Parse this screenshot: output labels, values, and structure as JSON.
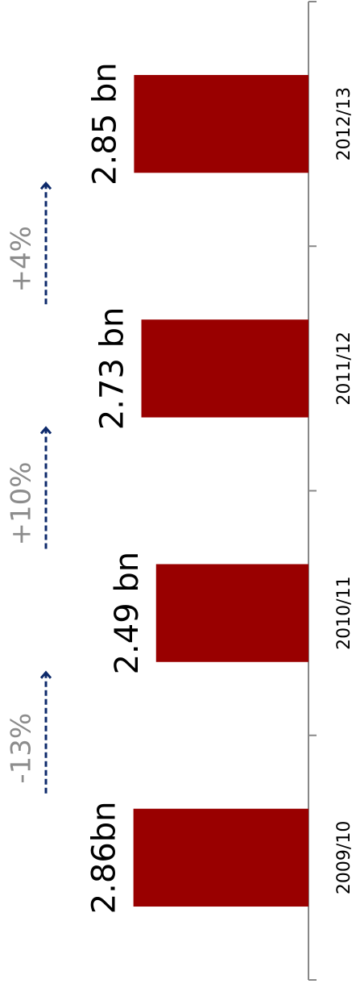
{
  "chart_data": {
    "type": "bar",
    "orientation": "rotated",
    "categories": [
      "2009/10",
      "2010/11",
      "2011/12",
      "2012/13"
    ],
    "values": [
      2.86,
      2.49,
      2.73,
      2.85
    ],
    "value_labels": [
      "2.86bn",
      "2.49 bn",
      "2.73 bn",
      "2.85 bn"
    ],
    "color": "#990000",
    "ylim": [
      0,
      5
    ],
    "annotations": [
      "-13%",
      "+10%",
      "+4%"
    ],
    "annotation_color": "#8c8c8c",
    "arrow_color": "#0d2a6b"
  }
}
